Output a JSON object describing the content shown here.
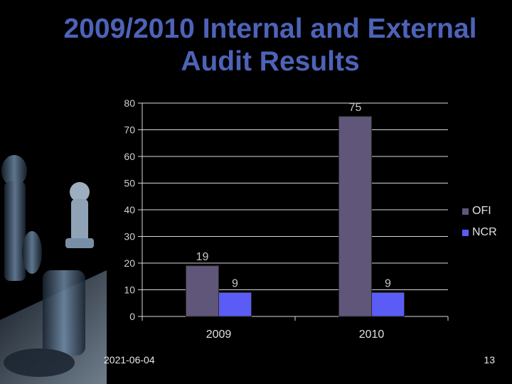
{
  "slide": {
    "title_line1": "2009/2010 Internal and External",
    "title_line2": "Audit Results",
    "date": "2021-06-04",
    "page_number": "13"
  },
  "chart_data": {
    "type": "bar",
    "categories": [
      "2009",
      "2010"
    ],
    "series": [
      {
        "name": "OFI",
        "values": [
          19,
          75
        ],
        "color": "#5f5679"
      },
      {
        "name": "NCR",
        "values": [
          9,
          9
        ],
        "color": "#5a5cf5"
      }
    ],
    "ylim": [
      0,
      80
    ],
    "yticks": [
      0,
      10,
      20,
      30,
      40,
      50,
      60,
      70,
      80
    ],
    "grid": true,
    "legend_position": "right",
    "xlabel": "",
    "ylabel": ""
  }
}
